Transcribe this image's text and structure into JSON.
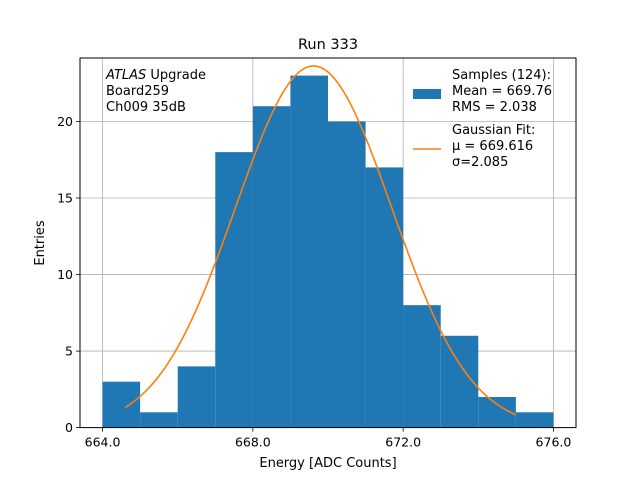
{
  "chart_data": {
    "type": "bar",
    "title": "Run 333",
    "xlabel": "Energy [ADC Counts]",
    "ylabel": "Entries",
    "xlim": [
      663.4,
      676.6
    ],
    "ylim": [
      0,
      24.15
    ],
    "grid": true,
    "x_ticks": [
      664,
      668,
      672,
      676
    ],
    "x_tick_labels": [
      "664.0",
      "668.0",
      "672.0",
      "676.0"
    ],
    "y_ticks": [
      0,
      5,
      10,
      15,
      20
    ],
    "y_tick_labels": [
      "0",
      "5",
      "10",
      "15",
      "20"
    ],
    "bin_edges": [
      664,
      665,
      666,
      667,
      668,
      669,
      670,
      671,
      672,
      673,
      674,
      675,
      676
    ],
    "histogram_counts": [
      3,
      1,
      4,
      18,
      21,
      23,
      20,
      17,
      8,
      6,
      2,
      1
    ],
    "fit": {
      "type": "gaussian",
      "amplitude": 23.63,
      "mu": 669.616,
      "sigma": 2.085,
      "x_range": [
        664.6,
        675.0
      ]
    },
    "annotation_lines": [
      {
        "italic": "ATLAS",
        "text": " Upgrade"
      },
      {
        "italic": "",
        "text": " Board259"
      },
      {
        "italic": "",
        "text": " Ch009 35dB"
      }
    ],
    "legend": {
      "placement": "top-right",
      "entries": [
        {
          "kind": "patch",
          "color": "#1f77b4",
          "lines": [
            "Samples (124):",
            " Mean = 669.76",
            " RMS = 2.038"
          ]
        },
        {
          "kind": "line",
          "color": "#ff7f0e",
          "lines": [
            "Gaussian Fit:",
            " μ = 669.616",
            " σ=2.085"
          ]
        }
      ]
    },
    "colors": {
      "bars": "#1f77b4",
      "fit_line": "#ff7f0e",
      "grid": "#b0b0b0",
      "axes": "#000000"
    }
  }
}
